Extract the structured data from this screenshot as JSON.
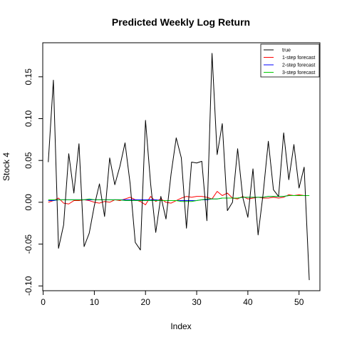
{
  "chart_data": {
    "type": "line",
    "title": "Predicted Weekly Log Return",
    "xlabel": "Index",
    "ylabel": "Stock 4",
    "xlim": [
      -0.08,
      54.08
    ],
    "ylim": [
      -0.1057,
      0.1907
    ],
    "x_ticks": [
      0,
      10,
      20,
      30,
      40,
      50
    ],
    "y_ticks": [
      -0.1,
      -0.05,
      0.0,
      0.05,
      0.1,
      0.15
    ],
    "x_tick_labels": [
      "0",
      "10",
      "20",
      "30",
      "40",
      "50"
    ],
    "y_tick_labels": [
      "-0.10",
      "-0.05",
      "0.00",
      "0.05",
      "0.10",
      "0.15"
    ],
    "grid": false,
    "legend_position": "top-right",
    "x": [
      1,
      2,
      3,
      4,
      5,
      6,
      7,
      8,
      9,
      10,
      11,
      12,
      13,
      14,
      15,
      16,
      17,
      18,
      19,
      20,
      21,
      22,
      23,
      24,
      25,
      26,
      27,
      28,
      29,
      30,
      31,
      32,
      33,
      34,
      35,
      36,
      37,
      38,
      39,
      40,
      41,
      42,
      43,
      44,
      45,
      46,
      47,
      48,
      49,
      50,
      51,
      52
    ],
    "series": [
      {
        "name": "true",
        "color": "#000000",
        "values": [
          0.048,
          0.146,
          -0.055,
          -0.027,
          0.058,
          0.011,
          0.07,
          -0.053,
          -0.037,
          -0.004,
          0.022,
          -0.017,
          0.053,
          0.021,
          0.043,
          0.071,
          0.022,
          -0.048,
          -0.057,
          0.098,
          0.022,
          -0.036,
          0.007,
          -0.02,
          0.034,
          0.077,
          0.053,
          -0.031,
          0.048,
          0.047,
          0.049,
          -0.022,
          0.178,
          0.057,
          0.094,
          -0.01,
          0.0,
          0.064,
          0.006,
          -0.018,
          0.04,
          -0.039,
          0.011,
          0.073,
          0.015,
          0.007,
          0.083,
          0.027,
          0.069,
          0.017,
          0.042,
          -0.093
        ]
      },
      {
        "name": "1-step forecast",
        "color": "#ff0000",
        "values": [
          0.0,
          0.002,
          0.005,
          -0.001,
          -0.002,
          0.002,
          0.002,
          0.003,
          0.002,
          0.0,
          -0.001,
          0.001,
          0.0,
          0.003,
          0.002,
          0.004,
          0.006,
          0.003,
          0.001,
          -0.003,
          0.007,
          0.001,
          0.004,
          0.0,
          -0.001,
          0.002,
          0.005,
          0.007,
          0.006,
          0.007,
          0.007,
          0.006,
          0.004,
          0.013,
          0.008,
          0.011,
          0.005,
          0.004,
          0.007,
          0.004,
          0.005,
          0.006,
          0.005,
          0.005,
          0.006,
          0.005,
          0.006,
          0.009,
          0.008,
          0.009,
          0.008,
          0.008
        ]
      },
      {
        "name": "2-step forecast",
        "color": "#0000ff",
        "values": [
          0.002,
          0.002,
          0.003,
          0.003,
          0.003,
          0.003,
          0.003,
          0.003,
          0.003,
          0.003,
          0.003,
          0.003,
          0.003,
          0.003,
          0.003,
          0.003,
          0.003,
          0.003,
          0.003,
          0.003,
          0.003,
          0.003,
          0.002,
          0.002,
          0.002,
          0.002,
          0.002,
          0.002,
          0.002,
          0.002,
          0.003,
          0.003,
          0.004,
          0.004,
          0.005,
          0.005,
          0.005,
          0.005,
          0.006,
          0.006,
          0.006,
          0.006,
          0.006,
          0.007,
          0.007,
          0.007,
          0.007,
          0.008,
          0.008,
          0.008,
          0.008,
          0.008
        ]
      },
      {
        "name": "3-step forecast",
        "color": "#00cc00",
        "values": [
          0.003,
          0.003,
          0.003,
          0.003,
          0.003,
          0.003,
          0.003,
          0.003,
          0.004,
          0.003,
          0.003,
          0.003,
          0.003,
          0.003,
          0.003,
          0.002,
          0.002,
          0.002,
          0.002,
          0.002,
          0.002,
          0.002,
          0.002,
          0.002,
          0.002,
          0.002,
          0.001,
          0.001,
          0.001,
          0.002,
          0.003,
          0.004,
          0.004,
          0.004,
          0.005,
          0.005,
          0.005,
          0.005,
          0.006,
          0.006,
          0.006,
          0.006,
          0.006,
          0.007,
          0.007,
          0.007,
          0.007,
          0.008,
          0.008,
          0.008,
          0.008,
          0.008
        ]
      }
    ]
  }
}
